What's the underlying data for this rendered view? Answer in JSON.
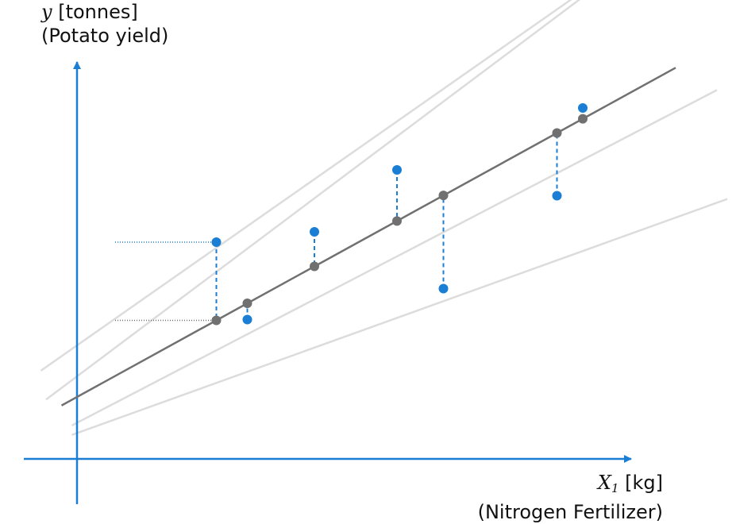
{
  "axes": {
    "y_var": "y",
    "y_unit": "[tonnes]",
    "y_desc": "(Potato yield)",
    "x_var": "X",
    "x_sub": "1",
    "x_unit": "[kg]",
    "x_desc": "(Nitrogen Fertilizer)"
  },
  "colors": {
    "axis": "#1a7fd4",
    "data_point": "#1a7fd4",
    "fit_line": "#707070",
    "fitted_point": "#707070",
    "candidate_line": "#dcdcdc",
    "residual": "#1a7fd4",
    "guide": "#707070"
  },
  "diagram": {
    "fit_line": {
      "intercept": 1.2,
      "slope": 0.55
    },
    "candidate_lines": [
      {
        "intercept": 2.2,
        "slope": 0.7
      },
      {
        "intercept": 1.6,
        "slope": 0.75
      },
      {
        "intercept": 0.7,
        "slope": 0.52
      },
      {
        "intercept": 0.5,
        "slope": 0.36
      }
    ],
    "points": [
      {
        "x": 2.7,
        "y": 4.2
      },
      {
        "x": 3.3,
        "y": 2.7
      },
      {
        "x": 4.6,
        "y": 4.4
      },
      {
        "x": 6.2,
        "y": 5.6
      },
      {
        "x": 7.1,
        "y": 3.3
      },
      {
        "x": 9.3,
        "y": 5.1
      },
      {
        "x": 9.8,
        "y": 6.8
      }
    ]
  }
}
